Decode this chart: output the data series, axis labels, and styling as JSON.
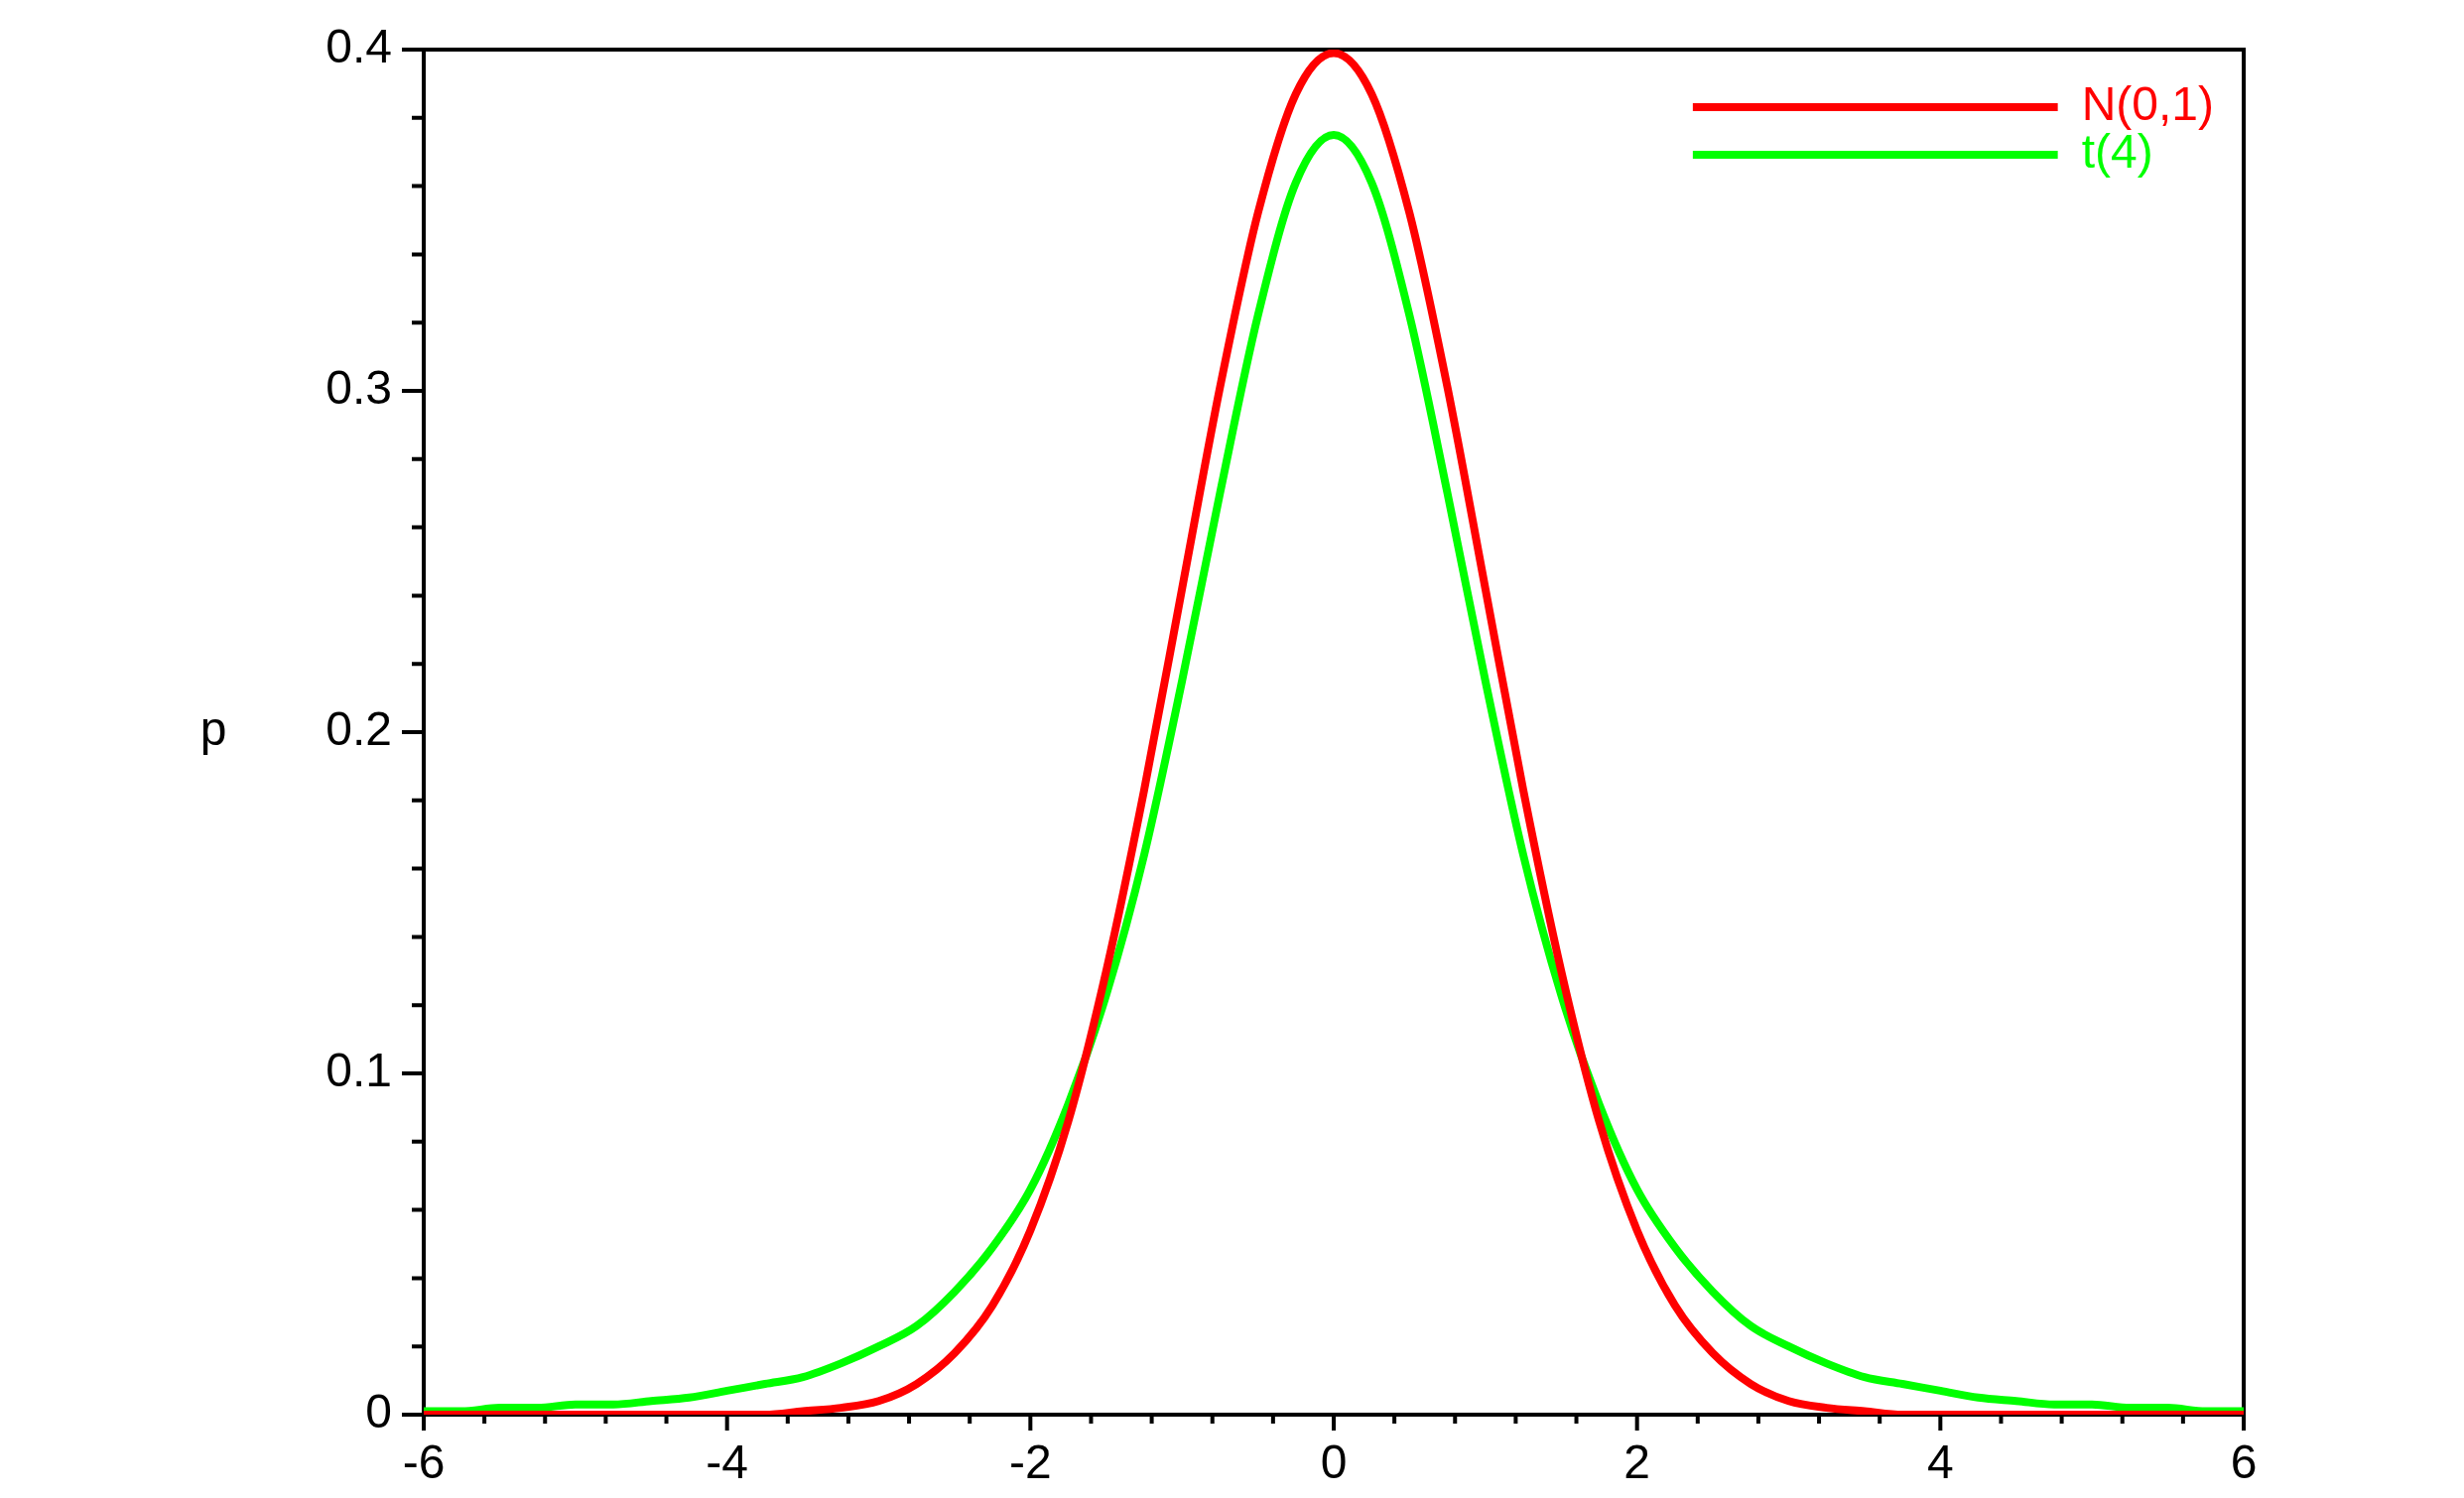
{
  "chart_data": {
    "type": "line",
    "ylabel": "p",
    "legend": "top right",
    "xlim": [
      -6,
      6
    ],
    "ylim": [
      0,
      0.4
    ],
    "xticks": [
      -6,
      {
        "value": -5.6,
        "label": null
      },
      {
        "value": -5.2,
        "label": null
      },
      {
        "value": -4.8,
        "label": null
      },
      {
        "value": -4.4,
        "label": null
      },
      -4,
      {
        "value": -3.6,
        "label": null
      },
      {
        "value": -3.2,
        "label": null
      },
      {
        "value": -2.8,
        "label": null
      },
      {
        "value": -2.4,
        "label": null
      },
      -2,
      {
        "value": -1.6,
        "label": null
      },
      {
        "value": -1.2,
        "label": null
      },
      {
        "value": -0.8,
        "label": null
      },
      {
        "value": -0.4,
        "label": null
      },
      0,
      {
        "value": 0.4,
        "label": null
      },
      {
        "value": 0.8,
        "label": null
      },
      {
        "value": 1.2,
        "label": null
      },
      {
        "value": 1.6,
        "label": null
      },
      2,
      {
        "value": 2.4,
        "label": null
      },
      {
        "value": 2.8,
        "label": null
      },
      {
        "value": 3.2,
        "label": null
      },
      {
        "value": 3.6,
        "label": null
      },
      4,
      {
        "value": 4.4,
        "label": null
      },
      {
        "value": 4.8,
        "label": null
      },
      {
        "value": 5.2,
        "label": null
      },
      {
        "value": 5.6,
        "label": null
      },
      6
    ],
    "yticks": [
      0,
      {
        "value": 0.02,
        "label": null
      },
      {
        "value": 0.04,
        "label": null
      },
      {
        "value": 0.06,
        "label": null
      },
      {
        "value": 0.08,
        "label": null
      },
      0.1,
      {
        "value": 0.12,
        "label": null
      },
      {
        "value": 0.14,
        "label": null
      },
      {
        "value": 0.16,
        "label": null
      },
      {
        "value": 0.18,
        "label": null
      },
      0.2,
      {
        "value": 0.22,
        "label": null
      },
      {
        "value": 0.24,
        "label": null
      },
      {
        "value": 0.26,
        "label": null
      },
      {
        "value": 0.28,
        "label": null
      },
      0.3,
      {
        "value": 0.32,
        "label": null
      },
      {
        "value": 0.34,
        "label": null
      },
      {
        "value": 0.36,
        "label": null
      },
      {
        "value": 0.38,
        "label": null
      },
      0.4
    ],
    "x": [
      -6,
      -5.75,
      -5.5,
      -5.25,
      -5,
      -4.75,
      -4.5,
      -4.25,
      -4,
      -3.75,
      -3.5,
      -3.25,
      -3,
      -2.75,
      -2.5,
      -2.25,
      -2,
      -1.75,
      -1.5,
      -1.25,
      -1,
      -0.75,
      -0.5,
      -0.25,
      0,
      0.25,
      0.5,
      0.75,
      1,
      1.25,
      1.5,
      1.75,
      2,
      2.25,
      2.5,
      2.75,
      3,
      3.25,
      3.5,
      3.75,
      4,
      4.25,
      4.5,
      4.75,
      5,
      5.25,
      5.5,
      5.75,
      6
    ],
    "series": [
      {
        "name": "N(0,1)",
        "color": "#ff0000",
        "values": [
          0,
          0,
          0,
          0,
          0,
          0,
          0,
          0,
          0,
          0,
          0.001,
          0.002,
          0.004,
          0.009,
          0.018,
          0.032,
          0.054,
          0.086,
          0.13,
          0.183,
          0.242,
          0.301,
          0.352,
          0.387,
          0.399,
          0.387,
          0.352,
          0.301,
          0.242,
          0.183,
          0.13,
          0.086,
          0.054,
          0.032,
          0.018,
          0.009,
          0.004,
          0.002,
          0.001,
          0,
          0,
          0,
          0,
          0,
          0,
          0,
          0,
          0,
          0
        ]
      },
      {
        "name": "t(4)",
        "color": "#00ff00",
        "values": [
          0.001,
          0.001,
          0.002,
          0.002,
          0.003,
          0.003,
          0.004,
          0.005,
          0.007,
          0.009,
          0.011,
          0.015,
          0.02,
          0.026,
          0.036,
          0.049,
          0.066,
          0.091,
          0.123,
          0.164,
          0.215,
          0.27,
          0.322,
          0.361,
          0.375,
          0.361,
          0.322,
          0.27,
          0.215,
          0.164,
          0.123,
          0.091,
          0.066,
          0.049,
          0.036,
          0.026,
          0.02,
          0.015,
          0.011,
          0.009,
          0.007,
          0.005,
          0.004,
          0.003,
          0.003,
          0.002,
          0.002,
          0.001,
          0.001
        ]
      }
    ]
  }
}
